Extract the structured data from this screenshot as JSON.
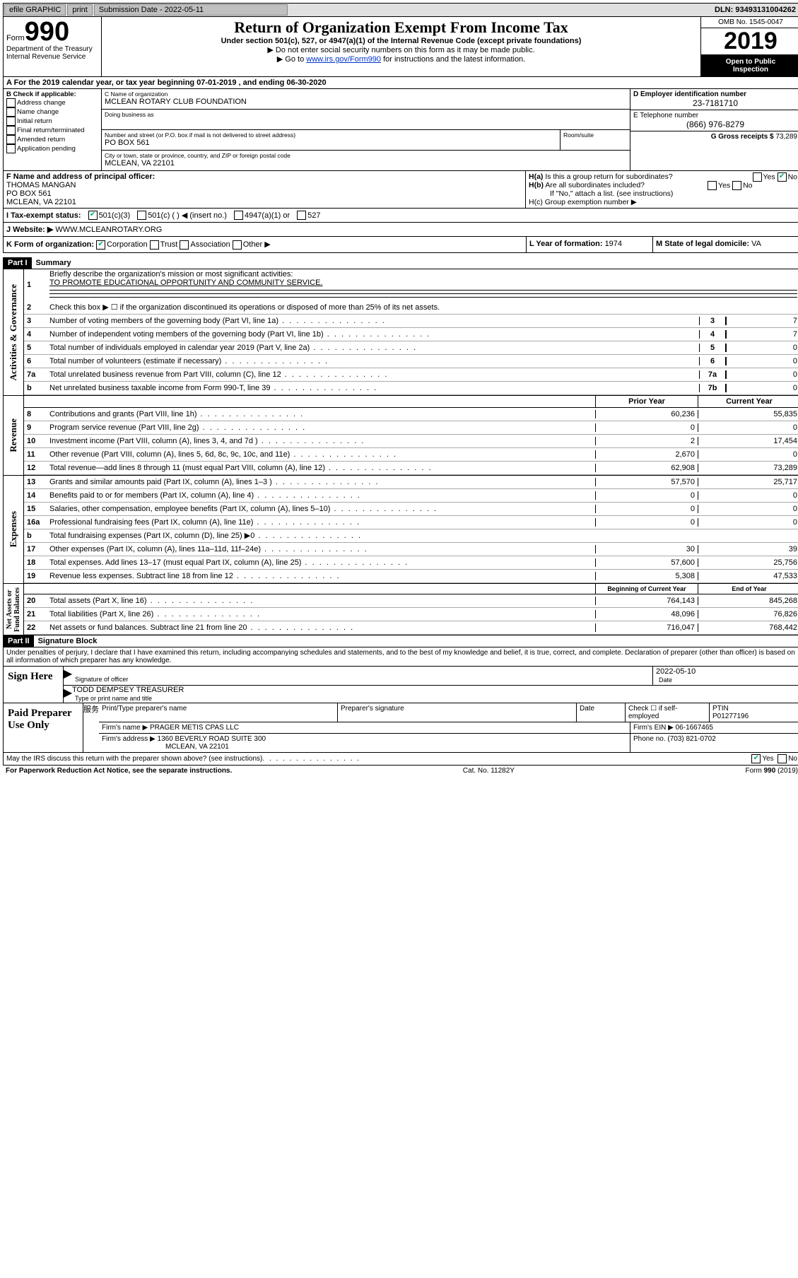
{
  "topbar": {
    "efile_label": "efile GRAPHIC",
    "print_btn": "print",
    "submission_label": "Submission Date - 2022-05-11",
    "dln": "DLN: 93493131004262"
  },
  "header": {
    "form_label": "Form",
    "form_number": "990",
    "dept1": "Department of the Treasury",
    "dept2": "Internal Revenue Service",
    "title": "Return of Organization Exempt From Income Tax",
    "sub": "Under section 501(c), 527, or 4947(a)(1) of the Internal Revenue Code (except private foundations)",
    "hint1": "Do not enter social security numbers on this form as it may be made public.",
    "hint2_pre": "Go to ",
    "hint2_link": "www.irs.gov/Form990",
    "hint2_post": " for instructions and the latest information.",
    "omb": "OMB No. 1545-0047",
    "year": "2019",
    "public1": "Open to Public",
    "public2": "Inspection"
  },
  "row_a": "A For the 2019 calendar year, or tax year beginning 07-01-2019 , and ending 06-30-2020",
  "col_b": {
    "title": "B Check if applicable:",
    "items": [
      "Address change",
      "Name change",
      "Initial return",
      "Final return/terminated",
      "Amended return",
      "Application pending"
    ]
  },
  "col_c": {
    "name_lbl": "C Name of organization",
    "name": "MCLEAN ROTARY CLUB FOUNDATION",
    "dba_lbl": "Doing business as",
    "dba": "",
    "street_lbl": "Number and street (or P.O. box if mail is not delivered to street address)",
    "room_lbl": "Room/suite",
    "street": "PO BOX 561",
    "city_lbl": "City or town, state or province, country, and ZIP or foreign postal code",
    "city": "MCLEAN, VA  22101"
  },
  "col_d": {
    "ein_lbl": "D Employer identification number",
    "ein": "23-7181710",
    "tel_lbl": "E Telephone number",
    "tel": "(866) 976-8279",
    "gross_lbl": "G Gross receipts $ ",
    "gross": "73,289"
  },
  "row_f": {
    "f_lbl": "F Name and address of principal officer:",
    "f_name": "THOMAS MANGAN",
    "f_addr1": "PO BOX 561",
    "f_addr2": "MCLEAN, VA  22101",
    "ha": "H(a)  Is this a group return for subordinates?",
    "ha_no": "No",
    "hb": "H(b)  Are all subordinates included?",
    "hb_hint": "If \"No,\" attach a list. (see instructions)",
    "hc": "H(c)  Group exemption number ▶"
  },
  "tax_row": {
    "lbl": "I  Tax-exempt status:",
    "o1": "501(c)(3)",
    "o2": "501(c) (   ) ◀ (insert no.)",
    "o3": "4947(a)(1) or",
    "o4": "527"
  },
  "web_row": {
    "lbl": "J  Website: ▶",
    "val": "WWW.MCLEANROTARY.ORG"
  },
  "k_row": {
    "k_lbl": "K Form of organization:",
    "k_opts": [
      "Corporation",
      "Trust",
      "Association",
      "Other ▶"
    ],
    "l_lbl": "L Year of formation: ",
    "l_val": "1974",
    "m_lbl": "M State of legal domicile: ",
    "m_val": "VA"
  },
  "part1": {
    "label": "Part I",
    "title": "Summary",
    "side_gov": "Activities & Governance",
    "q1_lbl": "Briefly describe the organization's mission or most significant activities:",
    "q1_val": "TO PROMOTE EDUCATIONAL OPPORTUNITY AND COMMUNITY SERVICE.",
    "q2": "Check this box ▶ ☐ if the organization discontinued its operations or disposed of more than 25% of its net assets.",
    "lines_gov": [
      {
        "n": "3",
        "desc": "Number of voting members of the governing body (Part VI, line 1a)",
        "num": "3",
        "val": "7"
      },
      {
        "n": "4",
        "desc": "Number of independent voting members of the governing body (Part VI, line 1b)",
        "num": "4",
        "val": "7"
      },
      {
        "n": "5",
        "desc": "Total number of individuals employed in calendar year 2019 (Part V, line 2a)",
        "num": "5",
        "val": "0"
      },
      {
        "n": "6",
        "desc": "Total number of volunteers (estimate if necessary)",
        "num": "6",
        "val": "0"
      },
      {
        "n": "7a",
        "desc": "Total unrelated business revenue from Part VIII, column (C), line 12",
        "num": "7a",
        "val": "0"
      },
      {
        "n": "b",
        "desc": "Net unrelated business taxable income from Form 990-T, line 39",
        "num": "7b",
        "val": "0"
      }
    ],
    "side_rev": "Revenue",
    "head_prior": "Prior Year",
    "head_curr": "Current Year",
    "lines_rev": [
      {
        "n": "8",
        "desc": "Contributions and grants (Part VIII, line 1h)",
        "c1": "60,236",
        "c2": "55,835"
      },
      {
        "n": "9",
        "desc": "Program service revenue (Part VIII, line 2g)",
        "c1": "0",
        "c2": "0"
      },
      {
        "n": "10",
        "desc": "Investment income (Part VIII, column (A), lines 3, 4, and 7d )",
        "c1": "2",
        "c2": "17,454"
      },
      {
        "n": "11",
        "desc": "Other revenue (Part VIII, column (A), lines 5, 6d, 8c, 9c, 10c, and 11e)",
        "c1": "2,670",
        "c2": "0"
      },
      {
        "n": "12",
        "desc": "Total revenue—add lines 8 through 11 (must equal Part VIII, column (A), line 12)",
        "c1": "62,908",
        "c2": "73,289"
      }
    ],
    "side_exp": "Expenses",
    "lines_exp": [
      {
        "n": "13",
        "desc": "Grants and similar amounts paid (Part IX, column (A), lines 1–3 )",
        "c1": "57,570",
        "c2": "25,717"
      },
      {
        "n": "14",
        "desc": "Benefits paid to or for members (Part IX, column (A), line 4)",
        "c1": "0",
        "c2": "0"
      },
      {
        "n": "15",
        "desc": "Salaries, other compensation, employee benefits (Part IX, column (A), lines 5–10)",
        "c1": "0",
        "c2": "0"
      },
      {
        "n": "16a",
        "desc": "Professional fundraising fees (Part IX, column (A), line 11e)",
        "c1": "0",
        "c2": "0"
      },
      {
        "n": "b",
        "desc": "Total fundraising expenses (Part IX, column (D), line 25) ▶0",
        "c1": "",
        "c2": "",
        "shaded": true
      },
      {
        "n": "17",
        "desc": "Other expenses (Part IX, column (A), lines 11a–11d, 11f–24e)",
        "c1": "30",
        "c2": "39"
      },
      {
        "n": "18",
        "desc": "Total expenses. Add lines 13–17 (must equal Part IX, column (A), line 25)",
        "c1": "57,600",
        "c2": "25,756"
      },
      {
        "n": "19",
        "desc": "Revenue less expenses. Subtract line 18 from line 12",
        "c1": "5,308",
        "c2": "47,533"
      }
    ],
    "side_net": "Net Assets or Fund Balances",
    "head_beg": "Beginning of Current Year",
    "head_end": "End of Year",
    "lines_net": [
      {
        "n": "20",
        "desc": "Total assets (Part X, line 16)",
        "c1": "764,143",
        "c2": "845,268"
      },
      {
        "n": "21",
        "desc": "Total liabilities (Part X, line 26)",
        "c1": "48,096",
        "c2": "76,826"
      },
      {
        "n": "22",
        "desc": "Net assets or fund balances. Subtract line 21 from line 20",
        "c1": "716,047",
        "c2": "768,442"
      }
    ]
  },
  "part2": {
    "label": "Part II",
    "title": "Signature Block",
    "declare": "Under penalties of perjury, I declare that I have examined this return, including accompanying schedules and statements, and to the best of my knowledge and belief, it is true, correct, and complete. Declaration of preparer (other than officer) is based on all information of which preparer has any knowledge."
  },
  "sign": {
    "left": "Sign Here",
    "sig_lbl": "Signature of officer",
    "date_lbl": "Date",
    "date_val": "2022-05-10",
    "name_val": "TODD DEMPSEY TREASURER",
    "name_lbl": "Type or print name and title"
  },
  "prep": {
    "left": "Paid Preparer Use Only",
    "h1": "Print/Type preparer's name",
    "h2": "Preparer's signature",
    "h3": "Date",
    "h4_lbl": "Check ☐ if self-employed",
    "h5_lbl": "PTIN",
    "h5_val": "P01277196",
    "firm_name_lbl": "Firm's name    ▶",
    "firm_name": "PRAGER METIS CPAS LLC",
    "firm_ein_lbl": "Firm's EIN ▶",
    "firm_ein": "06-1667465",
    "firm_addr_lbl": "Firm's address ▶",
    "firm_addr1": "1360 BEVERLY ROAD SUITE 300",
    "firm_addr2": "MCLEAN, VA  22101",
    "phone_lbl": "Phone no. ",
    "phone": "(703) 821-0702",
    "discuss": "May the IRS discuss this return with the preparer shown above? (see instructions)",
    "yes": "Yes",
    "no": "No"
  },
  "footer": {
    "left": "For Paperwork Reduction Act Notice, see the separate instructions.",
    "mid": "Cat. No. 11282Y",
    "right": "Form 990 (2019)"
  }
}
